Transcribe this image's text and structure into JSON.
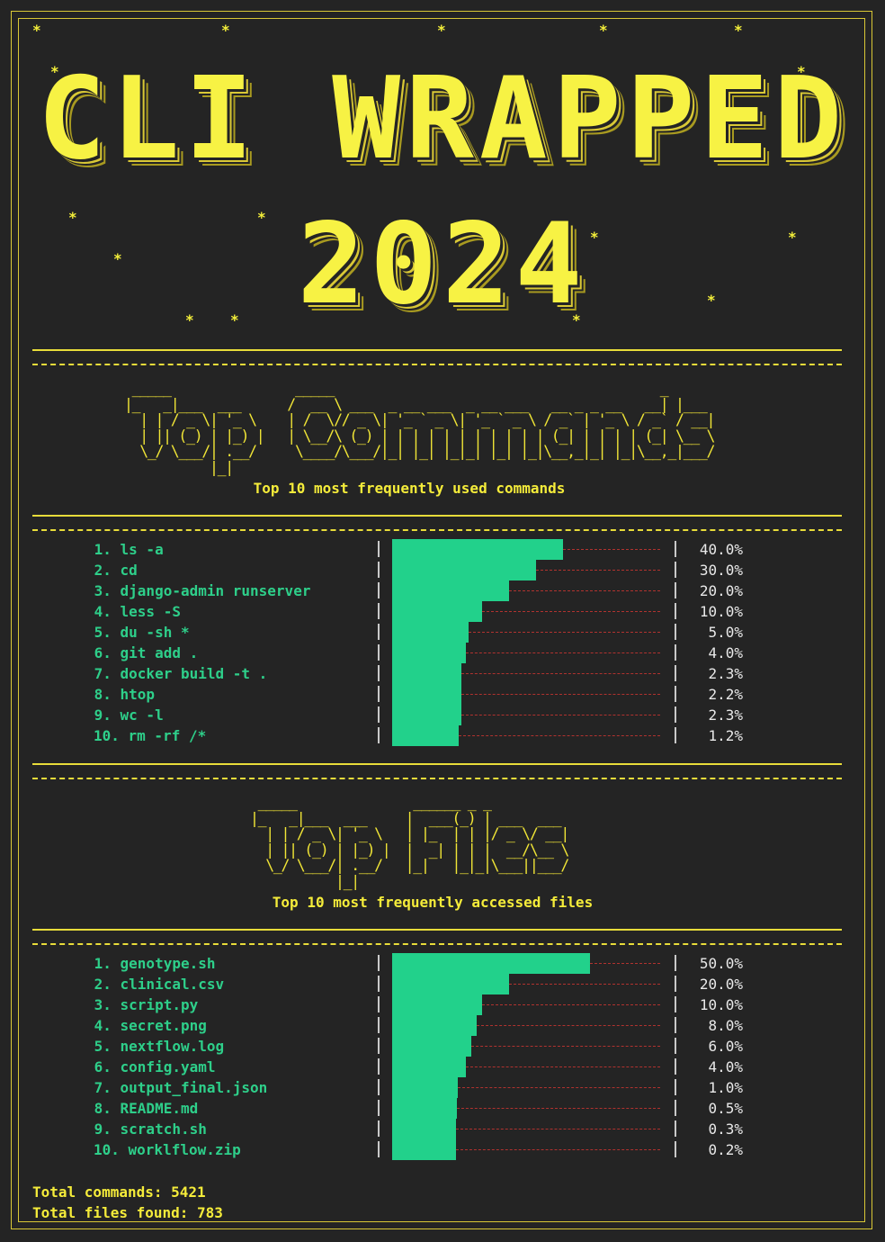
{
  "title_line1": "CLI WRAPPED",
  "title_line2": "2024",
  "commands_banner": " _____                _____                                          _     \n|_   _|___  ___      /  __ \\ ___  _ __ ___  _ __ ___   __ _ _ __   __| |___ \n  | | / _ \\| '_ \\    | /  \\// _ \\| '_ ` _ \\| '_ ` _ \\ / _` | '_ \\ / _` / __|\n  | || (_) | |_) |   | \\__/\\ (_) | | | | | | | | | | | (_| | | | | (_| \\__ \\\n  \\_/ \\___/| .__/     \\____/\\___/|_| |_| |_|_| |_| |_|\\__,_|_| |_|\\__,_|___/\n           |_|                                                              ",
  "files_banner": " _____               ______ _ _           \n|_   _|___  ___     |  ___(_) | ___  ___  \n  | | / _ \\| '_ \\   | |_  | | |/ _ \\/ __| \n  | || (_) | |_) |  |  _| | | |  __/\\__ \\ \n  \\_/ \\___/| .__/   |_|   |_|_|\\___||___/ \n           |_|                            ",
  "commands_subtitle": "Top 10 most frequently used commands",
  "files_subtitle": "Top 10 most frequently accessed files",
  "commands": [
    {
      "rank": "1.",
      "name": "ls -a",
      "percent": 40.0,
      "label": "40.0%"
    },
    {
      "rank": "2.",
      "name": "cd",
      "percent": 30.0,
      "label": "30.0%"
    },
    {
      "rank": "3.",
      "name": "django-admin runserver",
      "percent": 20.0,
      "label": "20.0%"
    },
    {
      "rank": "4.",
      "name": "less -S",
      "percent": 10.0,
      "label": "10.0%"
    },
    {
      "rank": "5.",
      "name": "du -sh *",
      "percent": 5.0,
      "label": "5.0%"
    },
    {
      "rank": "6.",
      "name": "git add .",
      "percent": 4.0,
      "label": "4.0%"
    },
    {
      "rank": "7.",
      "name": "docker build -t .",
      "percent": 2.3,
      "label": "2.3%"
    },
    {
      "rank": "8.",
      "name": "htop",
      "percent": 2.2,
      "label": "2.2%"
    },
    {
      "rank": "9.",
      "name": "wc -l",
      "percent": 2.3,
      "label": "2.3%"
    },
    {
      "rank": "10.",
      "name": "rm -rf /*",
      "percent": 1.2,
      "label": "1.2%"
    }
  ],
  "files": [
    {
      "rank": "1.",
      "name": "genotype.sh",
      "percent": 50.0,
      "label": "50.0%"
    },
    {
      "rank": "2.",
      "name": "clinical.csv",
      "percent": 20.0,
      "label": "20.0%"
    },
    {
      "rank": "3.",
      "name": "script.py",
      "percent": 10.0,
      "label": "10.0%"
    },
    {
      "rank": "4.",
      "name": "secret.png",
      "percent": 8.0,
      "label": "8.0%"
    },
    {
      "rank": "5.",
      "name": "nextflow.log",
      "percent": 6.0,
      "label": "6.0%"
    },
    {
      "rank": "6.",
      "name": "config.yaml",
      "percent": 4.0,
      "label": "4.0%"
    },
    {
      "rank": "7.",
      "name": "output_final.json",
      "percent": 1.0,
      "label": "1.0%"
    },
    {
      "rank": "8.",
      "name": "README.md",
      "percent": 0.5,
      "label": "0.5%"
    },
    {
      "rank": "9.",
      "name": "scratch.sh",
      "percent": 0.3,
      "label": "0.3%"
    },
    {
      "rank": "10.",
      "name": "worklflow.zip",
      "percent": 0.2,
      "label": "0.2%"
    }
  ],
  "totals": {
    "commands": "Total commands: 5421",
    "files": "Total files found: 783"
  },
  "colors": {
    "background": "#242424",
    "yellow": "#f5f03a",
    "green": "#22d18b",
    "red_dash": "#b0322f"
  }
}
